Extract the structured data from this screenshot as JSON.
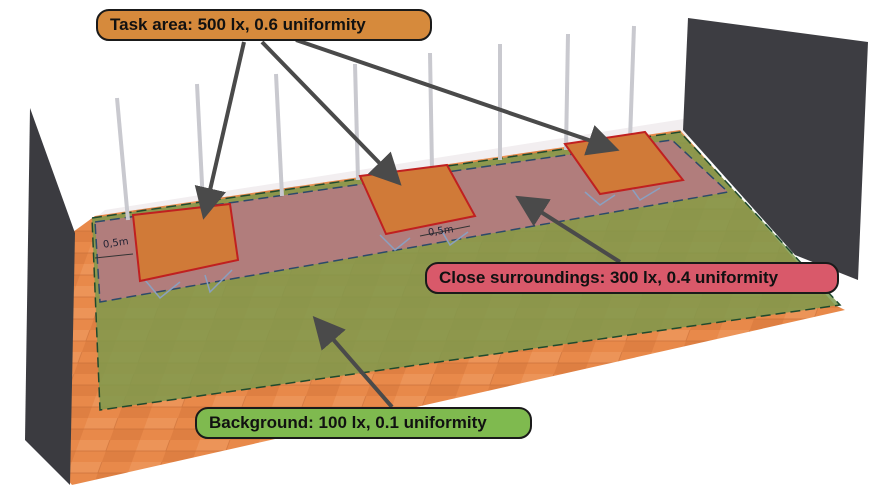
{
  "diagram": {
    "labels": {
      "task_area": "Task area: 500 lx, 0.6 uniformity",
      "close_surroundings": "Close surroundings: 300 lx, 0.4 uniformity",
      "background": "Background: 100 lx, 0.1 uniformity"
    },
    "dimensions": {
      "left_offset": "0,5m",
      "middle_offset": "0,5m"
    },
    "colors": {
      "task_area": "#d68a3c",
      "close_surroundings": "#d9596a",
      "background": "#7fba4f",
      "floor": "#e8894a",
      "wall": "#3c3c40",
      "arrow": "#555555"
    }
  }
}
